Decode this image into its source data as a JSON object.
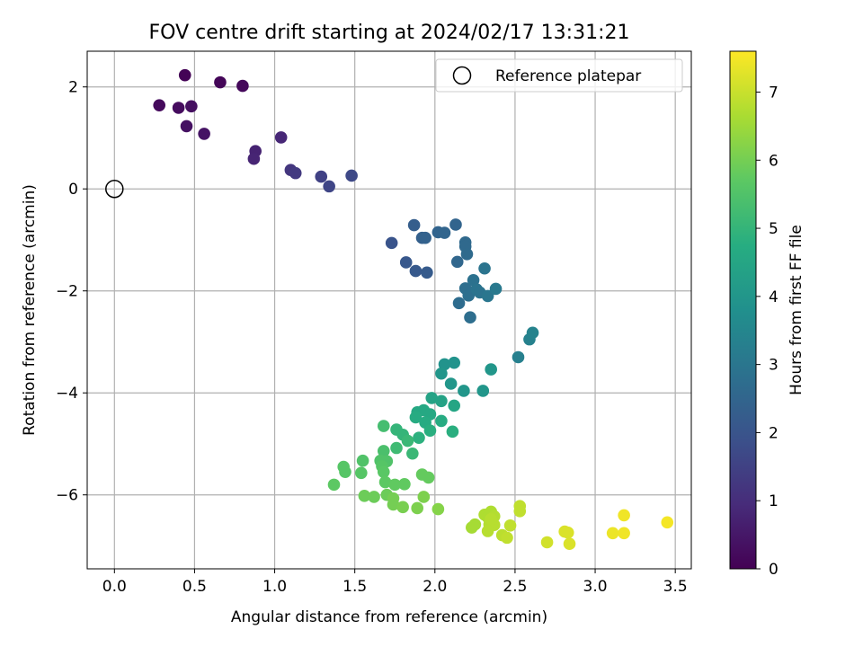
{
  "chart_data": {
    "type": "scatter",
    "title": "FOV centre drift starting at 2024/02/17 13:31:21",
    "xlabel": "Angular distance from reference (arcmin)",
    "ylabel": "Rotation from reference (arcmin)",
    "xlim": [
      -0.17,
      3.6
    ],
    "ylim": [
      -7.45,
      2.7
    ],
    "xticks": [
      0.0,
      0.5,
      1.0,
      1.5,
      2.0,
      2.5,
      3.0,
      3.5
    ],
    "xtick_labels": [
      "0.0",
      "0.5",
      "1.0",
      "1.5",
      "2.0",
      "2.5",
      "3.0",
      "3.5"
    ],
    "yticks": [
      -6,
      -4,
      -2,
      0,
      2
    ],
    "ytick_labels": [
      "−6",
      "−4",
      "−2",
      "0",
      "2"
    ],
    "grid": true,
    "colormap": "viridis",
    "colorbar": {
      "label": "Hours from first FF file",
      "range": [
        0,
        7.6
      ],
      "ticks": [
        0,
        1,
        2,
        3,
        4,
        5,
        6,
        7
      ],
      "tick_labels": [
        "0",
        "1",
        "2",
        "3",
        "4",
        "5",
        "6",
        "7"
      ]
    },
    "legend": {
      "position": "upper right",
      "entries": [
        "Reference platepar"
      ]
    },
    "reference": {
      "x": 0.0,
      "y": 0.0
    },
    "points": [
      [
        0.44,
        2.23,
        0.05
      ],
      [
        0.66,
        2.09,
        0.1
      ],
      [
        0.8,
        2.02,
        0.15
      ],
      [
        0.28,
        1.64,
        0.2
      ],
      [
        0.4,
        1.59,
        0.25
      ],
      [
        0.48,
        1.62,
        0.3
      ],
      [
        0.45,
        1.23,
        0.35
      ],
      [
        0.56,
        1.08,
        0.4
      ],
      [
        0.88,
        0.74,
        0.75
      ],
      [
        0.87,
        0.59,
        0.8
      ],
      [
        1.04,
        1.01,
        0.85
      ],
      [
        1.1,
        0.37,
        1.2
      ],
      [
        1.13,
        0.31,
        1.3
      ],
      [
        1.29,
        0.24,
        1.5
      ],
      [
        1.34,
        0.05,
        1.6
      ],
      [
        1.48,
        0.26,
        1.7
      ],
      [
        1.73,
        -1.06,
        2.0
      ],
      [
        1.82,
        -1.44,
        2.1
      ],
      [
        1.88,
        -1.61,
        2.15
      ],
      [
        1.95,
        -1.64,
        2.2
      ],
      [
        1.87,
        -0.71,
        2.3
      ],
      [
        1.92,
        -0.96,
        2.35
      ],
      [
        1.94,
        -0.96,
        2.4
      ],
      [
        2.02,
        -0.85,
        2.45
      ],
      [
        2.06,
        -0.86,
        2.5
      ],
      [
        2.13,
        -0.7,
        2.45
      ],
      [
        2.14,
        -1.43,
        2.55
      ],
      [
        2.19,
        -1.05,
        2.6
      ],
      [
        2.19,
        -1.13,
        2.6
      ],
      [
        2.2,
        -1.28,
        2.65
      ],
      [
        2.15,
        -2.24,
        2.7
      ],
      [
        2.19,
        -1.95,
        2.75
      ],
      [
        2.21,
        -2.09,
        2.8
      ],
      [
        2.22,
        -2.52,
        2.75
      ],
      [
        2.24,
        -1.79,
        2.85
      ],
      [
        2.26,
        -1.97,
        2.9
      ],
      [
        2.28,
        -2.03,
        2.9
      ],
      [
        2.31,
        -1.56,
        2.95
      ],
      [
        2.33,
        -2.1,
        3.0
      ],
      [
        2.38,
        -1.96,
        3.1
      ],
      [
        2.52,
        -3.3,
        3.3
      ],
      [
        2.59,
        -2.95,
        3.35
      ],
      [
        2.61,
        -2.82,
        3.4
      ],
      [
        2.06,
        -3.44,
        3.9
      ],
      [
        2.12,
        -3.41,
        3.9
      ],
      [
        2.04,
        -3.62,
        4.0
      ],
      [
        2.1,
        -3.82,
        4.0
      ],
      [
        2.18,
        -3.96,
        4.0
      ],
      [
        2.3,
        -3.96,
        4.0
      ],
      [
        2.35,
        -3.54,
        4.0
      ],
      [
        1.98,
        -4.1,
        4.4
      ],
      [
        2.04,
        -4.16,
        4.4
      ],
      [
        2.12,
        -4.25,
        4.5
      ],
      [
        1.89,
        -4.38,
        4.6
      ],
      [
        1.93,
        -4.34,
        4.6
      ],
      [
        1.97,
        -4.42,
        4.6
      ],
      [
        1.88,
        -4.48,
        4.7
      ],
      [
        1.94,
        -4.58,
        4.7
      ],
      [
        2.04,
        -4.55,
        4.7
      ],
      [
        1.97,
        -4.74,
        4.8
      ],
      [
        2.11,
        -4.76,
        4.8
      ],
      [
        1.9,
        -4.88,
        4.85
      ],
      [
        1.76,
        -4.72,
        5.0
      ],
      [
        1.8,
        -4.82,
        5.0
      ],
      [
        1.83,
        -4.94,
        5.1
      ],
      [
        1.86,
        -5.19,
        5.1
      ],
      [
        1.76,
        -5.08,
        5.2
      ],
      [
        1.68,
        -4.65,
        5.3
      ],
      [
        1.68,
        -5.14,
        5.4
      ],
      [
        1.55,
        -5.33,
        5.5
      ],
      [
        1.66,
        -5.33,
        5.5
      ],
      [
        1.7,
        -5.34,
        5.5
      ],
      [
        1.43,
        -5.45,
        5.6
      ],
      [
        1.44,
        -5.55,
        5.6
      ],
      [
        1.54,
        -5.57,
        5.6
      ],
      [
        1.67,
        -5.44,
        5.6
      ],
      [
        1.68,
        -5.55,
        5.65
      ],
      [
        1.37,
        -5.8,
        5.7
      ],
      [
        1.69,
        -5.75,
        5.7
      ],
      [
        1.75,
        -5.8,
        5.75
      ],
      [
        1.81,
        -5.79,
        5.75
      ],
      [
        1.92,
        -5.6,
        5.8
      ],
      [
        1.96,
        -5.66,
        5.8
      ],
      [
        1.56,
        -6.02,
        5.9
      ],
      [
        1.62,
        -6.04,
        5.9
      ],
      [
        1.7,
        -6.0,
        5.9
      ],
      [
        1.74,
        -6.07,
        6.0
      ],
      [
        1.74,
        -6.19,
        6.0
      ],
      [
        1.8,
        -6.24,
        6.05
      ],
      [
        1.89,
        -6.26,
        6.1
      ],
      [
        1.93,
        -6.04,
        6.1
      ],
      [
        2.02,
        -6.28,
        6.2
      ],
      [
        2.23,
        -6.64,
        6.6
      ],
      [
        2.25,
        -6.58,
        6.6
      ],
      [
        2.31,
        -6.39,
        6.7
      ],
      [
        2.33,
        -6.44,
        6.7
      ],
      [
        2.35,
        -6.33,
        6.7
      ],
      [
        2.37,
        -6.42,
        6.75
      ],
      [
        2.34,
        -6.58,
        6.75
      ],
      [
        2.37,
        -6.59,
        6.8
      ],
      [
        2.33,
        -6.71,
        6.8
      ],
      [
        2.35,
        -6.48,
        6.8
      ],
      [
        2.42,
        -6.79,
        6.85
      ],
      [
        2.45,
        -6.84,
        6.9
      ],
      [
        2.47,
        -6.6,
        6.9
      ],
      [
        2.53,
        -6.22,
        6.9
      ],
      [
        2.53,
        -6.32,
        6.9
      ],
      [
        2.7,
        -6.93,
        7.1
      ],
      [
        2.81,
        -6.72,
        7.2
      ],
      [
        2.83,
        -6.74,
        7.2
      ],
      [
        2.84,
        -6.96,
        7.2
      ],
      [
        3.11,
        -6.75,
        7.4
      ],
      [
        3.18,
        -6.75,
        7.45
      ],
      [
        3.18,
        -6.4,
        7.45
      ],
      [
        3.45,
        -6.54,
        7.5
      ]
    ]
  }
}
